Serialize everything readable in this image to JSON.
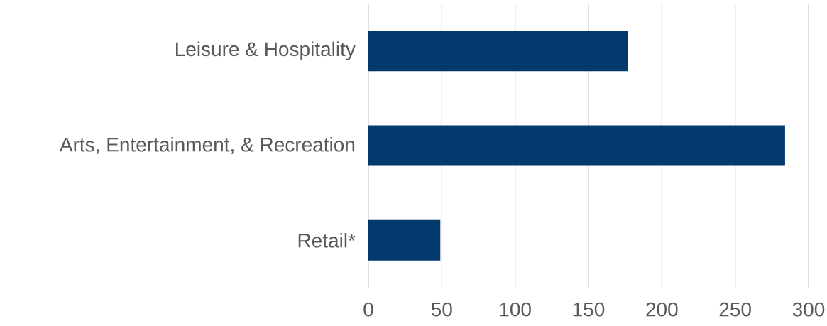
{
  "chart_data": {
    "type": "bar",
    "orientation": "horizontal",
    "categories": [
      "Leisure & Hospitality",
      "Arts, Entertainment, & Recreation",
      "Retail*"
    ],
    "values": [
      177,
      284,
      49
    ],
    "color": "#03396c",
    "xlim": [
      0,
      300
    ],
    "xticks": [
      0,
      50,
      100,
      150,
      200,
      250,
      300
    ],
    "grid": "x"
  }
}
